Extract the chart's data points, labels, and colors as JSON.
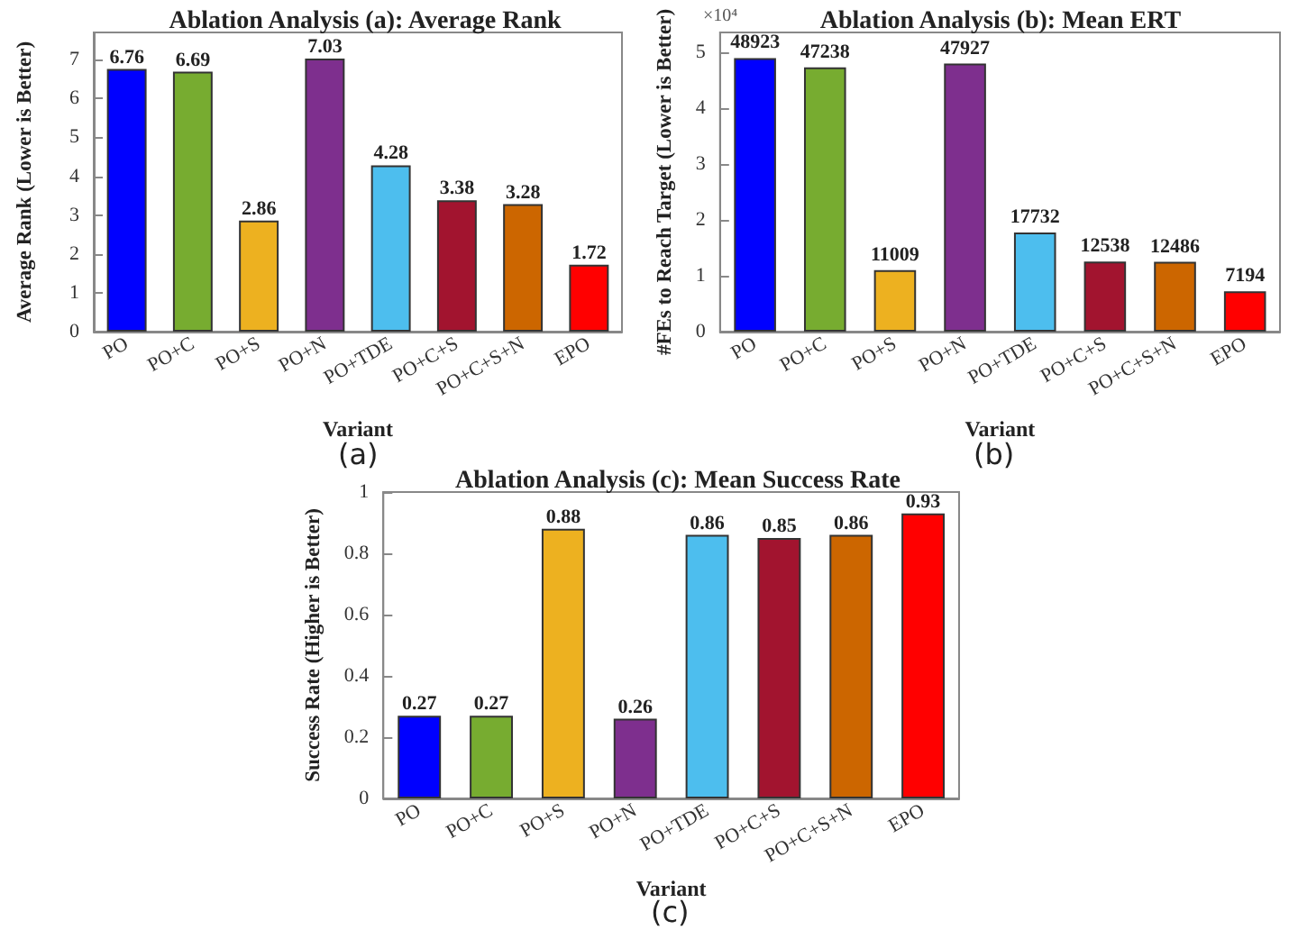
{
  "chart_data": [
    {
      "type": "bar",
      "title": "Ablation Analysis (a): Average Rank",
      "xlabel": "Variant",
      "ylabel": "Average Rank (Lower is Better)",
      "annotations": [
        "(a)"
      ],
      "categories": [
        "PO",
        "PO+C",
        "PO+S",
        "PO+N",
        "PO+TDE",
        "PO+C+S",
        "PO+C+S+N",
        "EPO"
      ],
      "values": [
        6.76,
        6.69,
        2.86,
        7.03,
        4.28,
        3.38,
        3.28,
        1.72
      ],
      "colors": [
        "#0000ff",
        "#77ac30",
        "#edb120",
        "#7e2f8e",
        "#4dbeee",
        "#a2142f",
        "#cc6600",
        "#ff0000"
      ],
      "ylim": [
        0,
        7.7
      ],
      "yticks": [
        0,
        1,
        2,
        3,
        4,
        5,
        6,
        7
      ],
      "data_labels": true
    },
    {
      "type": "bar",
      "title": "Ablation Analysis (b): Mean ERT",
      "xlabel": "Variant",
      "ylabel": "#FEs to Reach Target (Lower is Better)",
      "annotations": [
        "×10⁴",
        "(b)",
        {
          "text": "48923",
          "x": "PO",
          "y": 4.8923
        },
        {
          "text": "47238",
          "x": "PO+C",
          "y": 4.7238
        },
        {
          "text": "11009",
          "x": "PO+S",
          "y": 1.1009
        },
        {
          "text": "47927",
          "x": "PO+N",
          "y": 4.7927
        },
        {
          "text": "17732",
          "x": "PO+TDE",
          "y": 1.7732
        },
        {
          "text": "12538",
          "x": "PO+C+S",
          "y": 1.2538
        },
        {
          "text": "12486",
          "x": "PO+C+S+N",
          "y": 1.2486
        },
        {
          "text": "7194",
          "x": "EPO",
          "y": 0.7194
        }
      ],
      "categories": [
        "PO",
        "PO+C",
        "PO+S",
        "PO+N",
        "PO+TDE",
        "PO+C+S",
        "PO+C+S+N",
        "EPO"
      ],
      "values": [
        4.8923,
        4.7238,
        1.1009,
        4.7927,
        1.7732,
        1.2538,
        1.2486,
        0.7194
      ],
      "colors": [
        "#0000ff",
        "#77ac30",
        "#edb120",
        "#7e2f8e",
        "#4dbeee",
        "#a2142f",
        "#cc6600",
        "#ff0000"
      ],
      "ylim": [
        0,
        5.35
      ],
      "yticks": [
        0,
        1,
        2,
        3,
        4,
        5
      ]
    },
    {
      "type": "bar",
      "title": "Ablation Analysis (c): Mean Success Rate",
      "xlabel": "Variant",
      "ylabel": "Success Rate (Higher is Better)",
      "annotations": [
        "(c)"
      ],
      "categories": [
        "PO",
        "PO+C",
        "PO+S",
        "PO+N",
        "PO+TDE",
        "PO+C+S",
        "PO+C+S+N",
        "EPO"
      ],
      "values": [
        0.27,
        0.27,
        0.88,
        0.26,
        0.86,
        0.85,
        0.86,
        0.93
      ],
      "colors": [
        "#0000ff",
        "#77ac30",
        "#edb120",
        "#7e2f8e",
        "#4dbeee",
        "#a2142f",
        "#cc6600",
        "#ff0000"
      ],
      "ylim": [
        0,
        1
      ],
      "yticks": [
        0,
        0.2,
        0.4,
        0.6,
        0.8,
        1
      ],
      "data_labels": true
    }
  ]
}
